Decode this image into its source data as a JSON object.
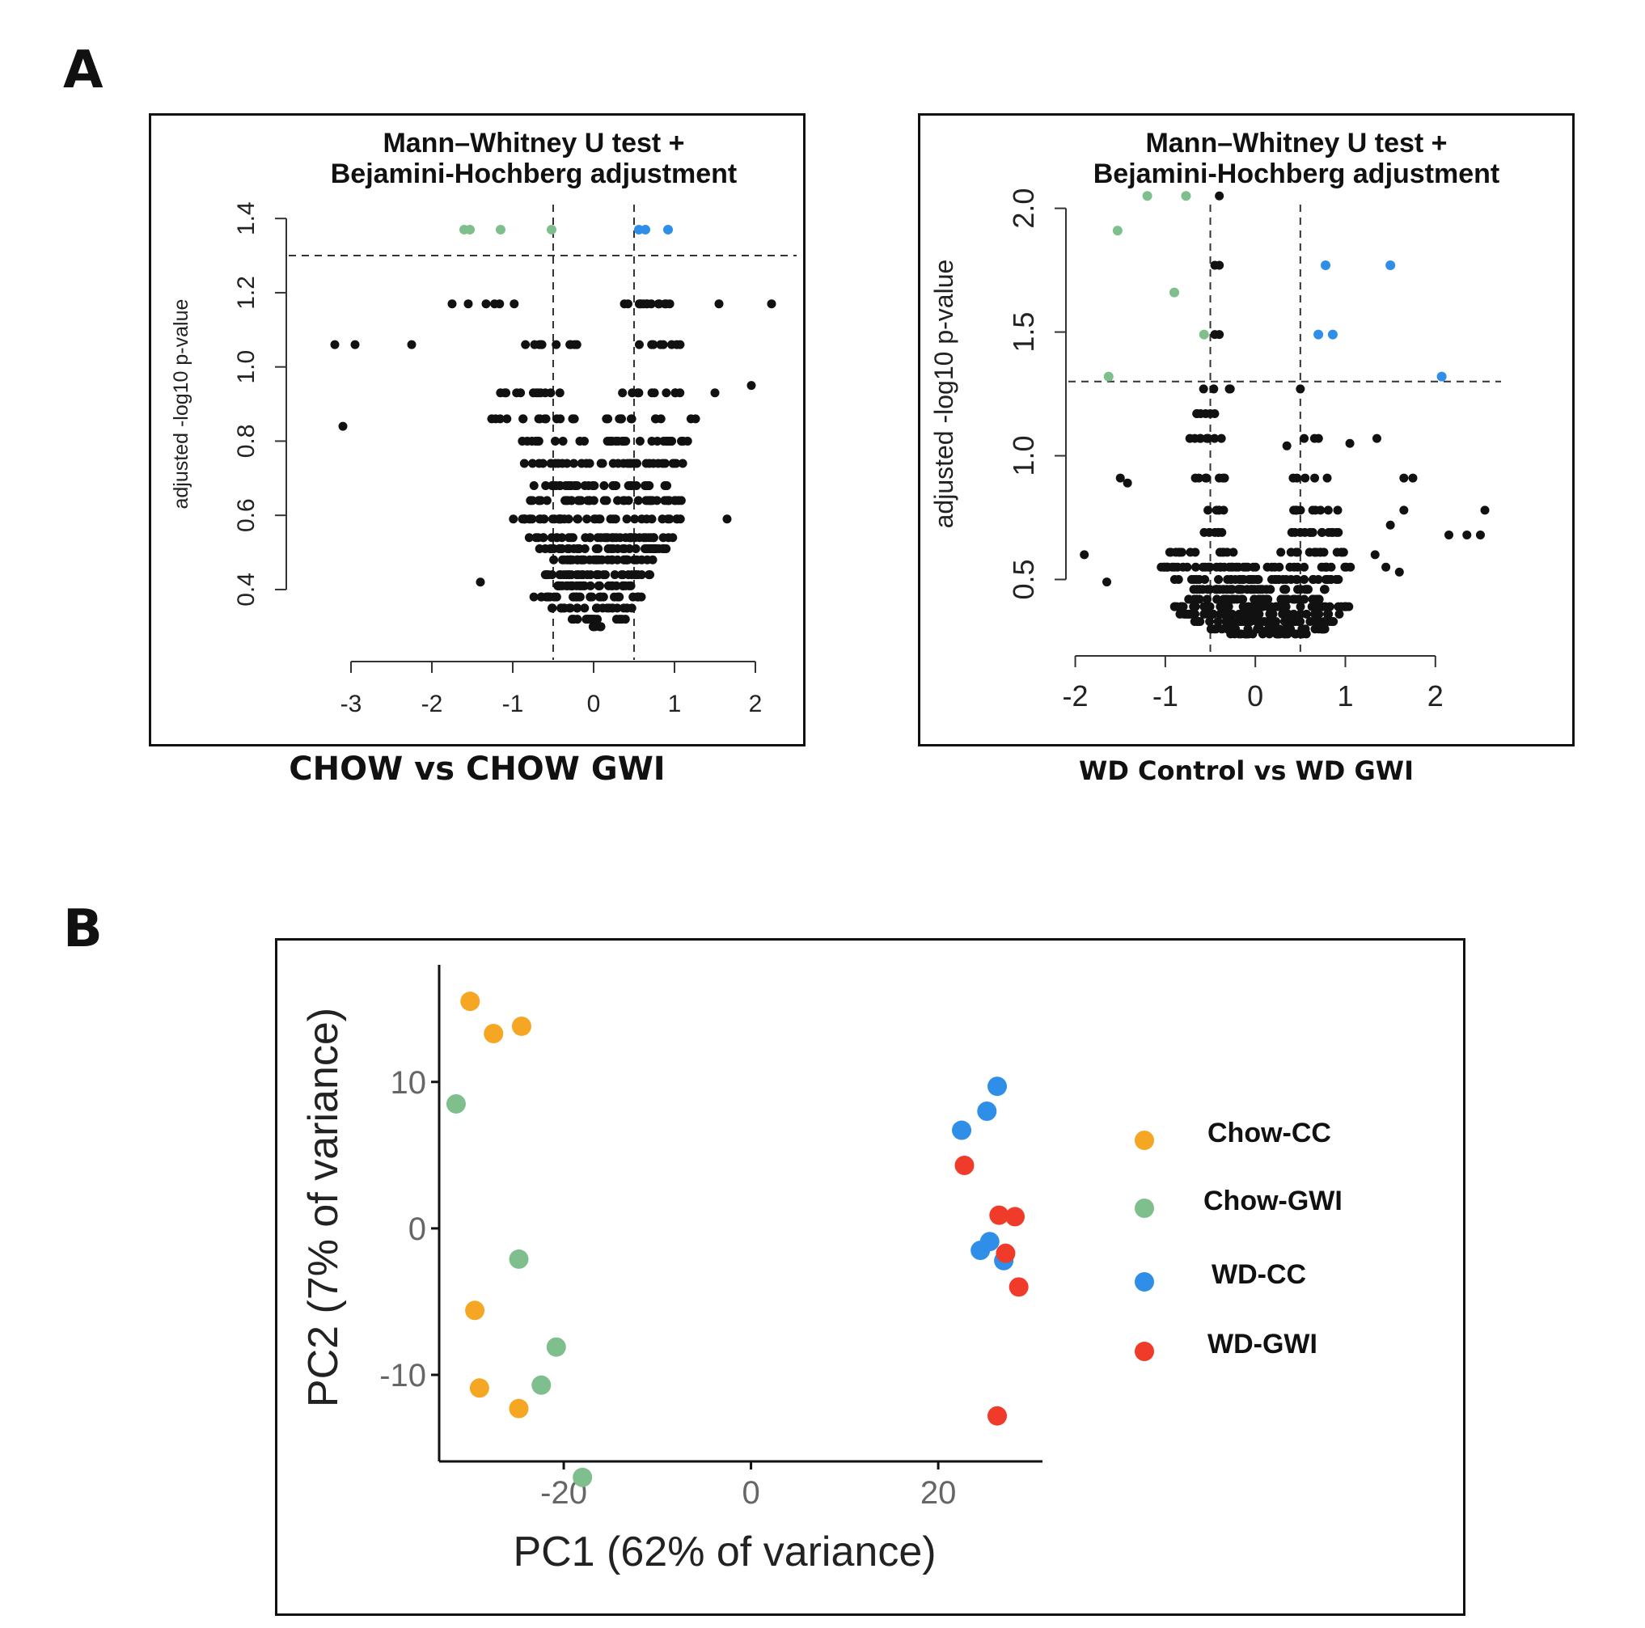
{
  "panel_labels": {
    "a": "A",
    "b": "B"
  },
  "chart_data": [
    {
      "id": "volcano-chow",
      "type": "scatter",
      "title_lines": [
        "Mann–Whitney U test +",
        "Bejamini-Hochberg adjustment"
      ],
      "xlabel": "",
      "ylabel": "adjusted -log10 p-value",
      "caption": "CHOW  vs CHOW GWI",
      "xlim": [
        -3.3,
        2.4
      ],
      "ylim": [
        0.28,
        1.42
      ],
      "xticks": [
        -3,
        -2,
        -1,
        0,
        1,
        2
      ],
      "yticks": [
        0.4,
        0.6,
        0.8,
        1.0,
        1.2,
        1.4
      ],
      "ytick_labels": [
        "0.4",
        "0.6",
        "0.8",
        "1.0",
        "1.2",
        "1.4"
      ],
      "xtick_labels": [
        "-3",
        "-2",
        "-1",
        "0",
        "1",
        "2"
      ],
      "vlines": [
        -0.5,
        0.5
      ],
      "hline": 1.3,
      "colors": {
        "neutral": "#111111",
        "down": "#7fbf8e",
        "up": "#2f8fe8"
      },
      "significant_points": [
        {
          "x": -1.6,
          "y": 1.37,
          "group": "down"
        },
        {
          "x": -1.53,
          "y": 1.37,
          "group": "down"
        },
        {
          "x": -1.15,
          "y": 1.37,
          "group": "down"
        },
        {
          "x": -0.52,
          "y": 1.37,
          "group": "down"
        },
        {
          "x": 0.56,
          "y": 1.37,
          "group": "up"
        },
        {
          "x": 0.64,
          "y": 1.37,
          "group": "up"
        },
        {
          "x": 0.92,
          "y": 1.37,
          "group": "up"
        }
      ],
      "outlier_points": [
        {
          "x": -3.2,
          "y": 1.06
        },
        {
          "x": -2.95,
          "y": 1.06
        },
        {
          "x": -2.25,
          "y": 1.06
        },
        {
          "x": -3.1,
          "y": 0.84
        },
        {
          "x": -1.75,
          "y": 1.17
        },
        {
          "x": 2.2,
          "y": 1.17
        },
        {
          "x": 1.55,
          "y": 1.17
        },
        {
          "x": 1.95,
          "y": 0.95
        },
        {
          "x": 1.65,
          "y": 0.59
        },
        {
          "x": -1.4,
          "y": 0.42
        },
        {
          "x": 1.5,
          "y": 0.93
        },
        {
          "x": -1.55,
          "y": 1.17
        }
      ],
      "bands": [
        {
          "y": 1.17,
          "segments": [
            [
              -1.4,
              -0.7
            ],
            [
              0.35,
              0.95
            ]
          ],
          "count": 18
        },
        {
          "y": 1.06,
          "segments": [
            [
              -0.9,
              -0.2
            ],
            [
              0.5,
              1.2
            ]
          ],
          "count": 18
        },
        {
          "y": 0.93,
          "segments": [
            [
              -1.2,
              -0.4
            ],
            [
              0.3,
              1.1
            ]
          ],
          "count": 22
        },
        {
          "y": 0.86,
          "segments": [
            [
              -1.3,
              -0.2
            ],
            [
              0.15,
              1.3
            ]
          ],
          "count": 28
        },
        {
          "y": 0.8,
          "segments": [
            [
              -1.0,
              -0.1
            ],
            [
              0.1,
              1.3
            ]
          ],
          "count": 32
        },
        {
          "y": 0.74,
          "segments": [
            [
              -0.9,
              0.0
            ],
            [
              0.0,
              1.3
            ]
          ],
          "count": 34
        },
        {
          "y": 0.68,
          "segments": [
            [
              -0.8,
              1.0
            ]
          ],
          "count": 40
        },
        {
          "y": 0.64,
          "segments": [
            [
              -0.8,
              1.1
            ]
          ],
          "count": 42
        },
        {
          "y": 0.59,
          "segments": [
            [
              -1.0,
              1.1
            ]
          ],
          "count": 44
        },
        {
          "y": 0.54,
          "segments": [
            [
              -0.8,
              1.0
            ]
          ],
          "count": 40
        },
        {
          "y": 0.51,
          "segments": [
            [
              -0.7,
              0.9
            ]
          ],
          "count": 40
        },
        {
          "y": 0.48,
          "segments": [
            [
              -0.7,
              0.8
            ]
          ],
          "count": 38
        },
        {
          "y": 0.44,
          "segments": [
            [
              -0.6,
              0.7
            ]
          ],
          "count": 34
        },
        {
          "y": 0.41,
          "segments": [
            [
              -0.5,
              0.5
            ]
          ],
          "count": 30
        },
        {
          "y": 0.38,
          "segments": [
            [
              -0.8,
              0.6
            ]
          ],
          "count": 30
        },
        {
          "y": 0.35,
          "segments": [
            [
              -0.6,
              0.5
            ]
          ],
          "count": 24
        },
        {
          "y": 0.32,
          "segments": [
            [
              -0.3,
              0.4
            ]
          ],
          "count": 16
        },
        {
          "y": 0.3,
          "segments": [
            [
              -0.05,
              0.1
            ]
          ],
          "count": 6
        }
      ]
    },
    {
      "id": "volcano-wd",
      "type": "scatter",
      "title_lines": [
        "Mann–Whitney U test +",
        "Bejamini-Hochberg adjustment"
      ],
      "xlabel": "",
      "ylabel": "adjusted -log10 p-value",
      "caption": "WD Control vs WD GWI",
      "xlim": [
        -2.05,
        2.9
      ],
      "ylim": [
        0.25,
        2.1
      ],
      "xticks": [
        -2,
        -1,
        0,
        1,
        2
      ],
      "yticks": [
        0.5,
        1.0,
        1.5,
        2.0
      ],
      "ytick_labels": [
        "0.5",
        "1.0",
        "1.5",
        "2.0"
      ],
      "xtick_labels": [
        "-2",
        "-1",
        "0",
        "1",
        "2"
      ],
      "vlines": [
        -0.5,
        0.5
      ],
      "hline": 1.3,
      "colors": {
        "neutral": "#111111",
        "down": "#7fbf8e",
        "up": "#2f8fe8"
      },
      "significant_points": [
        {
          "x": -1.2,
          "y": 2.05,
          "group": "down"
        },
        {
          "x": -0.77,
          "y": 2.05,
          "group": "down"
        },
        {
          "x": -1.53,
          "y": 1.91,
          "group": "down"
        },
        {
          "x": -0.9,
          "y": 1.66,
          "group": "down"
        },
        {
          "x": -0.57,
          "y": 1.49,
          "group": "down"
        },
        {
          "x": -1.63,
          "y": 1.32,
          "group": "down"
        },
        {
          "x": 0.78,
          "y": 1.77,
          "group": "up"
        },
        {
          "x": 1.5,
          "y": 1.77,
          "group": "up"
        },
        {
          "x": 0.7,
          "y": 1.49,
          "group": "up"
        },
        {
          "x": 0.86,
          "y": 1.49,
          "group": "up"
        },
        {
          "x": 2.07,
          "y": 1.32,
          "group": "up"
        }
      ],
      "outlier_points": [
        {
          "x": -0.4,
          "y": 2.05
        },
        {
          "x": -0.45,
          "y": 1.77
        },
        {
          "x": -0.4,
          "y": 1.77
        },
        {
          "x": -0.45,
          "y": 1.49
        },
        {
          "x": -0.4,
          "y": 1.49
        },
        {
          "x": 0.5,
          "y": 1.27
        },
        {
          "x": -1.9,
          "y": 0.6
        },
        {
          "x": -1.65,
          "y": 0.49
        },
        {
          "x": -1.5,
          "y": 0.91
        },
        {
          "x": -1.42,
          "y": 0.89
        },
        {
          "x": 1.65,
          "y": 0.91
        },
        {
          "x": 1.75,
          "y": 0.91
        },
        {
          "x": 2.55,
          "y": 0.78
        },
        {
          "x": 2.15,
          "y": 0.68
        },
        {
          "x": 2.35,
          "y": 0.68
        },
        {
          "x": 2.5,
          "y": 0.68
        },
        {
          "x": 1.5,
          "y": 0.72
        },
        {
          "x": 1.65,
          "y": 0.78
        },
        {
          "x": 1.35,
          "y": 1.07
        },
        {
          "x": 1.05,
          "y": 1.05
        },
        {
          "x": 1.6,
          "y": 0.53
        },
        {
          "x": 1.45,
          "y": 0.55
        },
        {
          "x": 1.33,
          "y": 0.6
        },
        {
          "x": 0.35,
          "y": 1.04
        }
      ],
      "bands": [
        {
          "y": 1.27,
          "segments": [
            [
              -0.6,
              -0.25
            ]
          ],
          "count": 5
        },
        {
          "y": 1.17,
          "segments": [
            [
              -0.7,
              -0.3
            ]
          ],
          "count": 6
        },
        {
          "y": 1.07,
          "segments": [
            [
              -0.75,
              -0.25
            ],
            [
              0.5,
              0.75
            ]
          ],
          "count": 12
        },
        {
          "y": 0.91,
          "segments": [
            [
              -0.7,
              -0.3
            ],
            [
              0.35,
              0.8
            ]
          ],
          "count": 12
        },
        {
          "y": 0.78,
          "segments": [
            [
              -0.6,
              -0.35
            ],
            [
              0.35,
              1.0
            ]
          ],
          "count": 16
        },
        {
          "y": 0.69,
          "segments": [
            [
              -0.75,
              -0.3
            ],
            [
              0.3,
              0.95
            ]
          ],
          "count": 20
        },
        {
          "y": 0.61,
          "segments": [
            [
              -1.0,
              -0.2
            ],
            [
              0.25,
              1.0
            ]
          ],
          "count": 28
        },
        {
          "y": 0.55,
          "segments": [
            [
              -1.05,
              1.1
            ]
          ],
          "count": 46
        },
        {
          "y": 0.5,
          "segments": [
            [
              -0.9,
              0.95
            ]
          ],
          "count": 44
        },
        {
          "y": 0.46,
          "segments": [
            [
              -0.7,
              0.8
            ]
          ],
          "count": 42
        },
        {
          "y": 0.42,
          "segments": [
            [
              -0.8,
              0.85
            ]
          ],
          "count": 46
        },
        {
          "y": 0.39,
          "segments": [
            [
              -0.9,
              1.1
            ]
          ],
          "count": 50
        },
        {
          "y": 0.36,
          "segments": [
            [
              -0.85,
              1.0
            ]
          ],
          "count": 50
        },
        {
          "y": 0.33,
          "segments": [
            [
              -0.7,
              0.9
            ]
          ],
          "count": 44
        },
        {
          "y": 0.3,
          "segments": [
            [
              -0.55,
              0.8
            ]
          ],
          "count": 36
        },
        {
          "y": 0.28,
          "segments": [
            [
              -0.35,
              0.6
            ]
          ],
          "count": 24
        }
      ]
    },
    {
      "id": "pca",
      "type": "scatter",
      "title": "",
      "xlabel": "PC1 (62% of variance)",
      "ylabel": "PC2 (7% of variance)",
      "xlim": [
        -34,
        32
      ],
      "ylim": [
        -19,
        17
      ],
      "xticks": [
        -20,
        0,
        20
      ],
      "xtick_labels": [
        "-20",
        "0",
        "20"
      ],
      "yticks": [
        -10,
        0,
        10
      ],
      "ytick_labels": [
        "-10",
        "0",
        "10"
      ],
      "legend_position": "right",
      "series": [
        {
          "name": "Chow-CC",
          "color": "#f5a623",
          "points": [
            [
              -30,
              15.5
            ],
            [
              -27.5,
              13.3
            ],
            [
              -24.5,
              13.8
            ],
            [
              -29.5,
              -5.6
            ],
            [
              -29,
              -10.9
            ],
            [
              -24.8,
              -12.3
            ]
          ]
        },
        {
          "name": "Chow-GWI",
          "color": "#7fbf8e",
          "points": [
            [
              -31.5,
              8.5
            ],
            [
              -24.8,
              -2.1
            ],
            [
              -20.8,
              -8.1
            ],
            [
              -22.4,
              -10.7
            ],
            [
              -18,
              -17
            ]
          ]
        },
        {
          "name": "WD-CC",
          "color": "#2f8fe8",
          "points": [
            [
              26.3,
              9.7
            ],
            [
              25.2,
              8.0
            ],
            [
              22.5,
              6.7
            ],
            [
              24.5,
              -1.5
            ],
            [
              25.5,
              -0.9
            ],
            [
              27,
              -2.2
            ]
          ]
        },
        {
          "name": "WD-GWI",
          "color": "#f03a2a",
          "points": [
            [
              22.8,
              4.3
            ],
            [
              26.5,
              0.9
            ],
            [
              28.2,
              0.8
            ],
            [
              27.2,
              -1.7
            ],
            [
              28.6,
              -4.0
            ],
            [
              26.3,
              -12.8
            ]
          ]
        }
      ]
    }
  ]
}
